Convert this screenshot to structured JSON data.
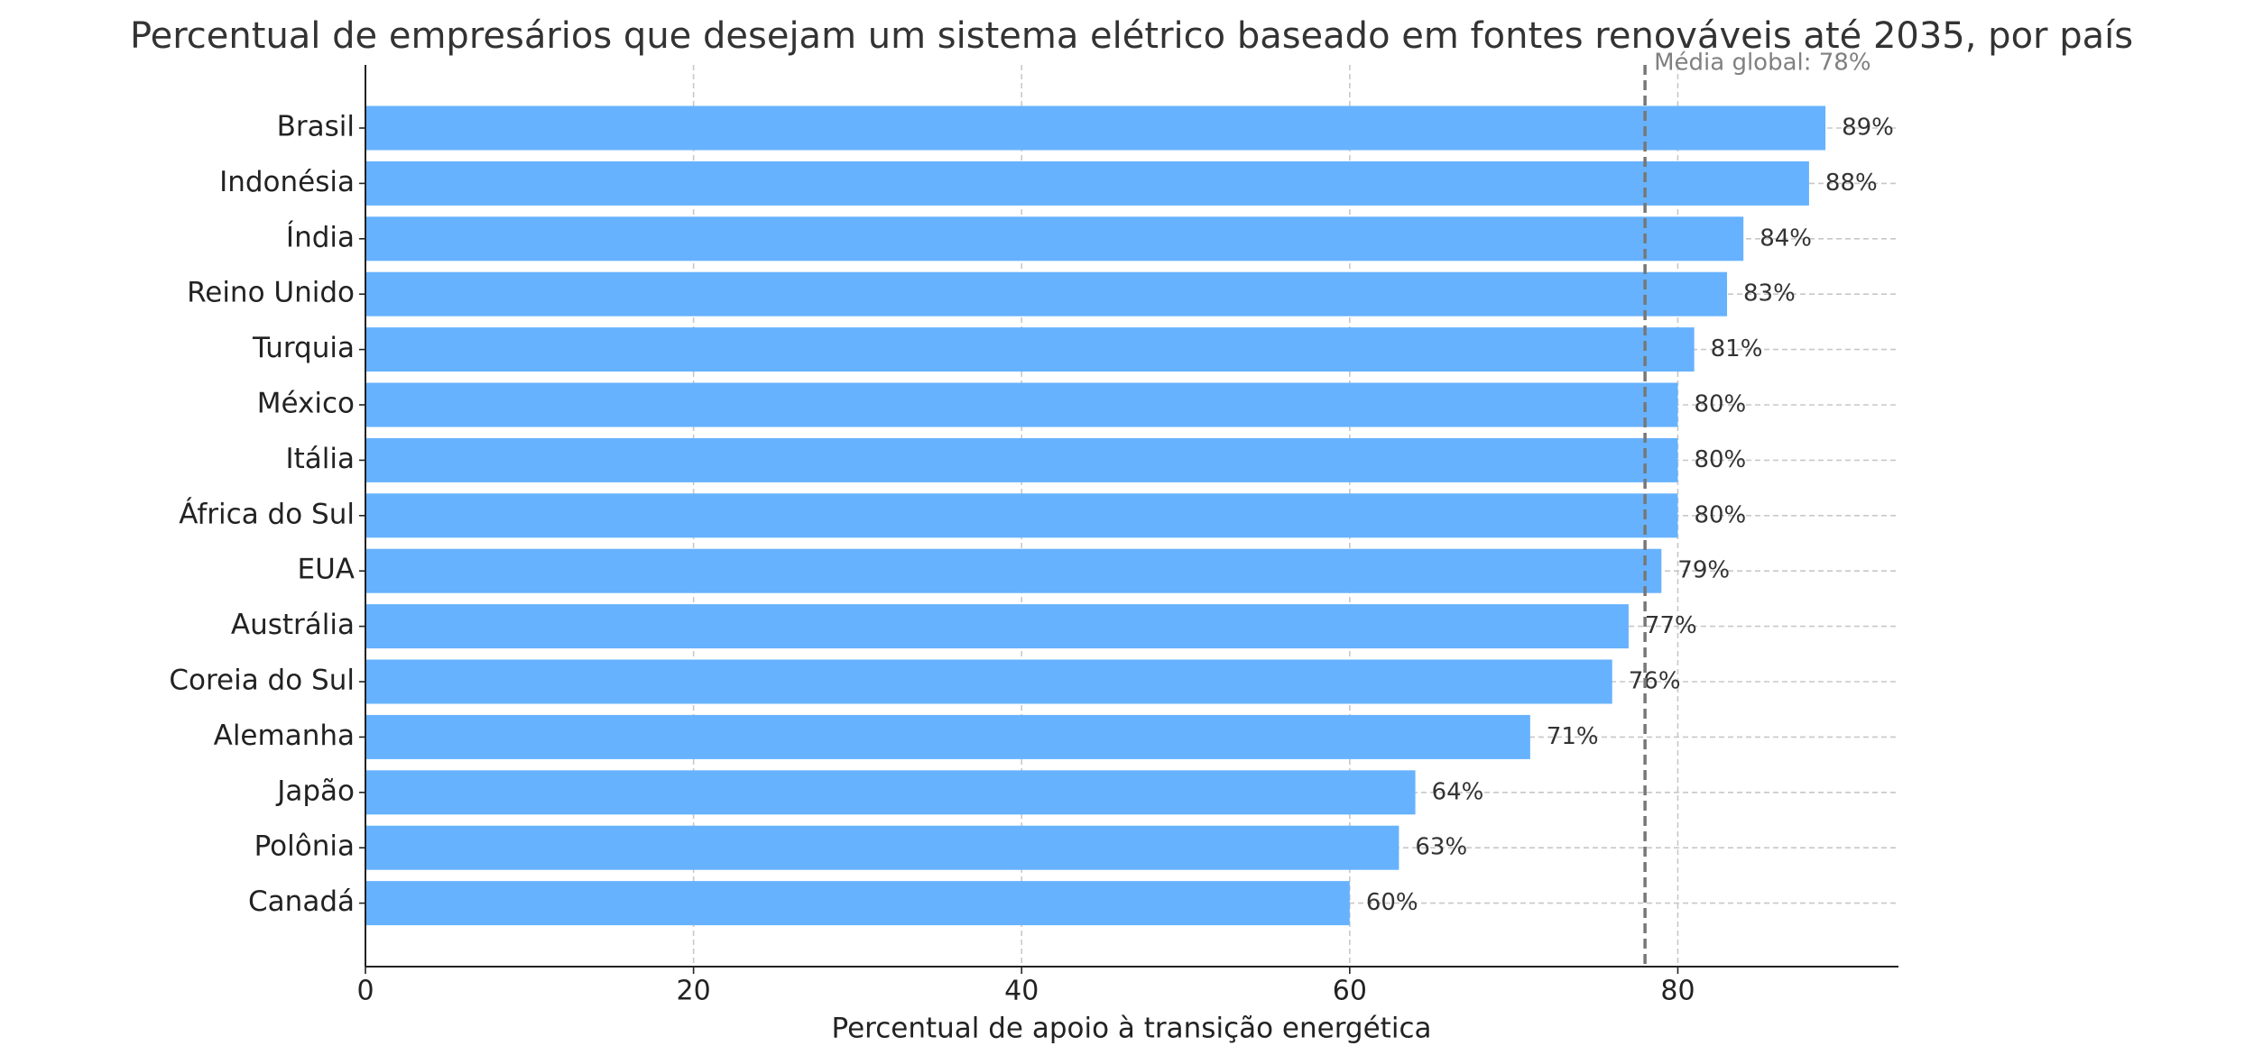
{
  "chart_data": {
    "type": "barh",
    "title": "Percentual de empresários que desejam um sistema elétrico baseado em fontes renováveis até 2035, por país",
    "xlabel": "Percentual de apoio à transição energética",
    "categories": [
      "Brasil",
      "Indonésia",
      "Índia",
      "Reino Unido",
      "Turquia",
      "México",
      "Itália",
      "África do Sul",
      "EUA",
      "Austrália",
      "Coreia do Sul",
      "Alemanha",
      "Japão",
      "Polônia",
      "Canadá"
    ],
    "values": [
      89,
      88,
      84,
      83,
      81,
      80,
      80,
      80,
      79,
      77,
      76,
      71,
      64,
      63,
      60
    ],
    "value_labels": [
      "89%",
      "88%",
      "84%",
      "83%",
      "81%",
      "80%",
      "80%",
      "80%",
      "79%",
      "77%",
      "76%",
      "71%",
      "64%",
      "63%",
      "60%"
    ],
    "color": "#66b2ff",
    "xlim": [
      0,
      93.45
    ],
    "xticks": [
      0,
      20,
      40,
      60,
      80
    ],
    "grid": true,
    "mean": 78,
    "mean_label": "Média global: 78%"
  }
}
